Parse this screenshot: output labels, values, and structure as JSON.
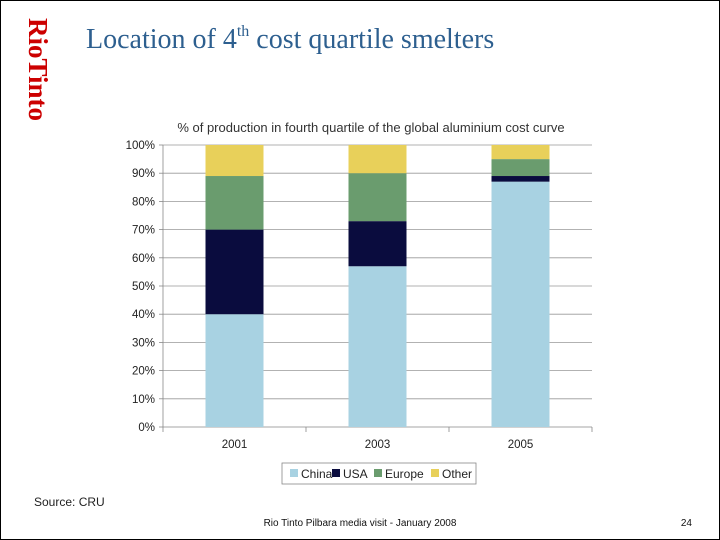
{
  "logo": {
    "text": "RioTinto"
  },
  "slide": {
    "title_prefix": "Location of 4",
    "title_sup": "th",
    "title_suffix": " cost quartile smelters"
  },
  "chart_data": {
    "type": "bar",
    "stacked": true,
    "title": "% of production in fourth quartile of the global aluminium cost curve",
    "categories": [
      "2001",
      "2003",
      "2005"
    ],
    "series": [
      {
        "name": "China",
        "color": "#a8d2e2",
        "values": [
          40,
          57,
          87
        ]
      },
      {
        "name": "USA",
        "color": "#0a0c3e",
        "values": [
          30,
          16,
          2
        ]
      },
      {
        "name": "Europe",
        "color": "#6a9c6e",
        "values": [
          19,
          17,
          6
        ]
      },
      {
        "name": "Other",
        "color": "#e8d05a",
        "values": [
          11,
          10,
          5
        ]
      }
    ],
    "ylim": [
      0,
      100
    ],
    "yticks": [
      "0%",
      "10%",
      "20%",
      "30%",
      "40%",
      "50%",
      "60%",
      "70%",
      "80%",
      "90%",
      "100%"
    ],
    "xlabel": "",
    "ylabel": "",
    "grid": true,
    "legend_placement": "bottom"
  },
  "source": "Source: CRU",
  "footer": "Rio Tinto Pilbara media visit - January 2008",
  "page_number": "24"
}
